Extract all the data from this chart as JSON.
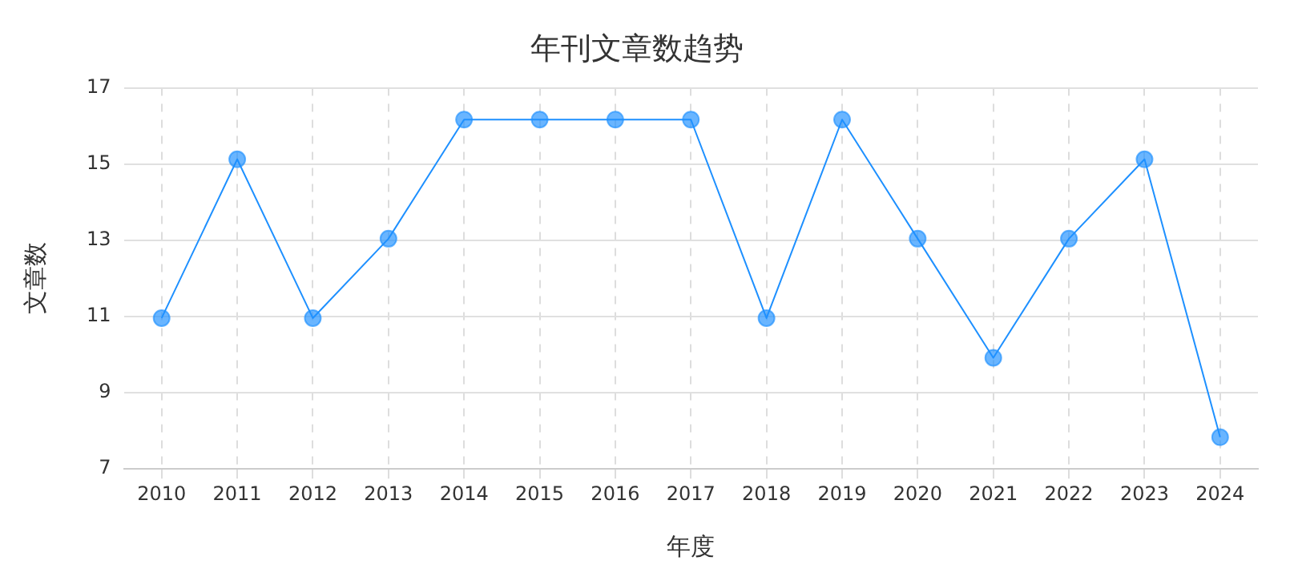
{
  "chart_data": {
    "type": "line",
    "title": "年刊文章数趋势",
    "xlabel": "年度",
    "ylabel": "文章数",
    "categories": [
      "2010",
      "2011",
      "2012",
      "2013",
      "2014",
      "2015",
      "2016",
      "2017",
      "2018",
      "2019",
      "2020",
      "2021",
      "2022",
      "2023",
      "2024"
    ],
    "series": [
      {
        "color": "#1e90ff",
        "values": [
          11,
          15,
          11,
          13,
          16,
          16,
          16,
          16,
          11,
          16,
          13,
          10,
          13,
          15,
          8
        ]
      }
    ],
    "ylim": [
      7.2,
      16.8
    ],
    "yticks": [
      {
        "value": 7.2,
        "label": "7"
      },
      {
        "value": 9.12,
        "label": "9"
      },
      {
        "value": 11.04,
        "label": "11"
      },
      {
        "value": 12.96,
        "label": "13"
      },
      {
        "value": 14.88,
        "label": "15"
      },
      {
        "value": 16.8,
        "label": "17"
      }
    ],
    "grid": true,
    "marker": "circle",
    "line_style": "solid",
    "legend": false
  }
}
